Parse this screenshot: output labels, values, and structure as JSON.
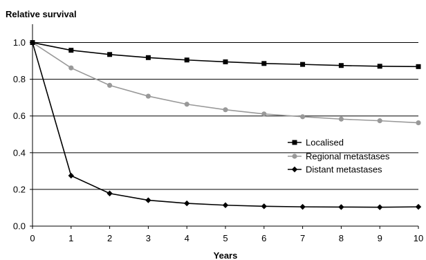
{
  "chart_data": {
    "type": "line",
    "ylabel": "Relative survival",
    "xlabel": "Years",
    "x": [
      0,
      1,
      2,
      3,
      4,
      5,
      6,
      7,
      8,
      9,
      10
    ],
    "xlim": [
      0,
      10
    ],
    "ylim": [
      0,
      1.1
    ],
    "xticks": [
      "0",
      "1",
      "2",
      "3",
      "4",
      "5",
      "6",
      "7",
      "8",
      "9",
      "10"
    ],
    "yticks": [
      "0.0",
      "0.2",
      "0.4",
      "0.6",
      "0.8",
      "1.0"
    ],
    "grid": "horizontal",
    "legend_position": "right",
    "series": [
      {
        "name": "Localised",
        "color": "#000000",
        "marker": "square",
        "values": [
          1.0,
          0.958,
          0.935,
          0.918,
          0.905,
          0.895,
          0.886,
          0.881,
          0.875,
          0.871,
          0.869
        ]
      },
      {
        "name": "Regional metastases",
        "color": "#999999",
        "marker": "circle",
        "values": [
          1.0,
          0.862,
          0.767,
          0.708,
          0.664,
          0.634,
          0.611,
          0.596,
          0.583,
          0.574,
          0.563
        ]
      },
      {
        "name": "Distant metastases",
        "color": "#000000",
        "marker": "diamond",
        "values": [
          1.0,
          0.275,
          0.178,
          0.141,
          0.124,
          0.114,
          0.108,
          0.105,
          0.104,
          0.103,
          0.105
        ]
      }
    ]
  }
}
